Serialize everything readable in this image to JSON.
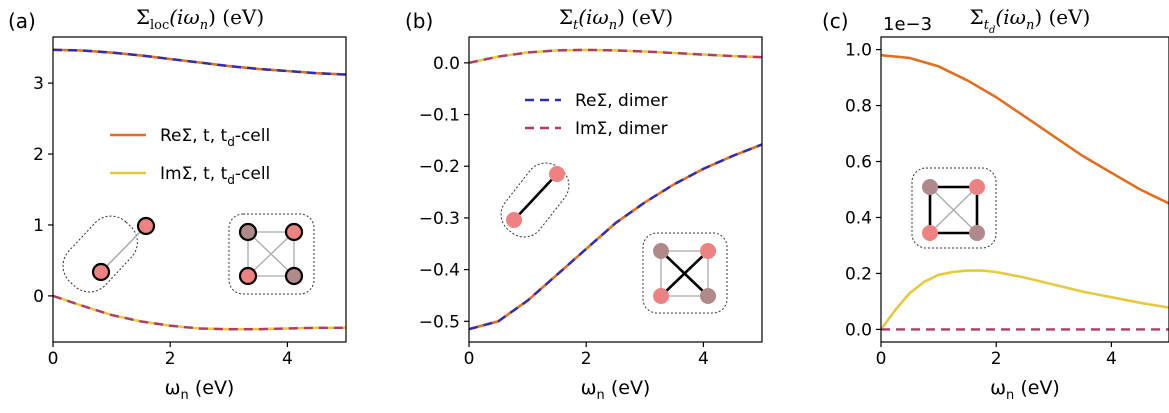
{
  "chart_data": [
    {
      "type": "line",
      "panel_label": "(a)",
      "title_main": "Σ",
      "title_sub": "loc",
      "title_rest": "(iω",
      "title_sub2": "n",
      "title_end": ") (eV)",
      "xlabel_main": "ω",
      "xlabel_sub": "n",
      "xlabel_rest": " (eV)",
      "xlim": [
        0,
        5
      ],
      "ylim": [
        -0.65,
        3.65
      ],
      "xticks": [
        0,
        2,
        4
      ],
      "yticks": [
        0,
        1,
        2,
        3
      ],
      "legend": {
        "placement": "center-right",
        "entries": [
          {
            "main": "ReΣ, t, t",
            "sub": "d",
            "rest": "-cell",
            "color": "#e07020",
            "dash": false
          },
          {
            "main": "ImΣ, t, t",
            "sub": "d",
            "rest": "-cell",
            "color": "#e6c940",
            "dash": false
          }
        ]
      },
      "series": [
        {
          "color": "#e07020",
          "x": [
            0,
            0.5,
            1,
            1.5,
            2,
            2.5,
            3,
            3.5,
            4,
            4.5,
            5
          ],
          "values": [
            3.47,
            3.46,
            3.43,
            3.39,
            3.34,
            3.29,
            3.24,
            3.2,
            3.17,
            3.14,
            3.12
          ]
        },
        {
          "color": "#2d2db8",
          "dash": true,
          "x": [
            0,
            0.5,
            1,
            1.5,
            2,
            2.5,
            3,
            3.5,
            4,
            4.5,
            5
          ],
          "values": [
            3.47,
            3.46,
            3.43,
            3.39,
            3.34,
            3.29,
            3.24,
            3.2,
            3.17,
            3.14,
            3.12
          ]
        },
        {
          "color": "#e6c940",
          "x": [
            0,
            0.5,
            1,
            1.5,
            2,
            2.5,
            3,
            3.5,
            4,
            4.5,
            5
          ],
          "values": [
            0,
            -0.14,
            -0.27,
            -0.36,
            -0.42,
            -0.46,
            -0.47,
            -0.47,
            -0.46,
            -0.45,
            -0.45
          ]
        },
        {
          "color": "#b03a6e",
          "dash": true,
          "x": [
            0,
            0.5,
            1,
            1.5,
            2,
            2.5,
            3,
            3.5,
            4,
            4.5,
            5
          ],
          "values": [
            0,
            -0.14,
            -0.27,
            -0.36,
            -0.42,
            -0.46,
            -0.47,
            -0.47,
            -0.46,
            -0.45,
            -0.45
          ]
        }
      ]
    },
    {
      "type": "line",
      "panel_label": "(b)",
      "title_main": "Σ",
      "title_sub": "t",
      "title_rest": "(iω",
      "title_sub2": "n",
      "title_end": ") (eV)",
      "xlabel_main": "ω",
      "xlabel_sub": "n",
      "xlabel_rest": " (eV)",
      "xlim": [
        0,
        5
      ],
      "ylim": [
        -0.54,
        0.05
      ],
      "xticks": [
        0,
        2,
        4
      ],
      "yticks": [
        0.0,
        -0.1,
        -0.2,
        -0.3,
        -0.4,
        -0.5
      ],
      "ytick_labels": [
        "0.0",
        "−0.1",
        "−0.2",
        "−0.3",
        "−0.4",
        "−0.5"
      ],
      "legend": {
        "placement": "upper-right",
        "entries": [
          {
            "main": "ReΣ, dimer",
            "sub": "",
            "rest": "",
            "color": "#2d2db8",
            "dash": true
          },
          {
            "main": "ImΣ, dimer",
            "sub": "",
            "rest": "",
            "color": "#b03a6e",
            "dash": true
          }
        ]
      },
      "series": [
        {
          "color": "#e07020",
          "x": [
            0,
            0.5,
            1,
            1.5,
            2,
            2.5,
            3,
            3.5,
            4,
            4.5,
            5
          ],
          "values": [
            -0.515,
            -0.5,
            -0.46,
            -0.41,
            -0.36,
            -0.31,
            -0.27,
            -0.235,
            -0.205,
            -0.18,
            -0.158
          ]
        },
        {
          "color": "#2d2db8",
          "dash": true,
          "x": [
            0,
            0.5,
            1,
            1.5,
            2,
            2.5,
            3,
            3.5,
            4,
            4.5,
            5
          ],
          "values": [
            -0.515,
            -0.5,
            -0.46,
            -0.41,
            -0.36,
            -0.31,
            -0.27,
            -0.235,
            -0.205,
            -0.18,
            -0.158
          ]
        },
        {
          "color": "#e6c940",
          "x": [
            0,
            0.5,
            1,
            1.5,
            2,
            2.5,
            3,
            3.5,
            4,
            4.5,
            5
          ],
          "values": [
            0,
            0.012,
            0.02,
            0.024,
            0.025,
            0.024,
            0.022,
            0.019,
            0.016,
            0.013,
            0.011
          ]
        },
        {
          "color": "#b03a6e",
          "dash": true,
          "x": [
            0,
            0.5,
            1,
            1.5,
            2,
            2.5,
            3,
            3.5,
            4,
            4.5,
            5
          ],
          "values": [
            0,
            0.012,
            0.02,
            0.024,
            0.025,
            0.024,
            0.022,
            0.019,
            0.016,
            0.013,
            0.011
          ]
        }
      ]
    },
    {
      "type": "line",
      "panel_label": "(c)",
      "title_main": "Σ",
      "title_sub": "t",
      "title_subsub": "d",
      "title_rest": "(iω",
      "title_sub2": "n",
      "title_end": ") (eV)",
      "exponent": "1e−3",
      "xlabel_main": "ω",
      "xlabel_sub": "n",
      "xlabel_rest": " (eV)",
      "xlim": [
        0,
        5
      ],
      "ylim": [
        -0.045,
        1.045
      ],
      "xticks": [
        0,
        2,
        4
      ],
      "yticks": [
        0.0,
        0.2,
        0.4,
        0.6,
        0.8,
        1.0
      ],
      "ytick_labels": [
        "0.0",
        "0.2",
        "0.4",
        "0.6",
        "0.8",
        "1.0"
      ],
      "series": [
        {
          "color": "#e07020",
          "x": [
            0,
            0.5,
            1,
            1.5,
            2,
            2.5,
            3,
            3.5,
            4,
            4.5,
            5
          ],
          "values": [
            0.98,
            0.97,
            0.94,
            0.89,
            0.83,
            0.76,
            0.69,
            0.62,
            0.56,
            0.5,
            0.45
          ]
        },
        {
          "color": "#e6c940",
          "x": [
            0,
            0.25,
            0.5,
            0.75,
            1,
            1.25,
            1.5,
            1.75,
            2,
            2.5,
            3,
            3.5,
            4,
            4.5,
            5
          ],
          "values": [
            0,
            0.07,
            0.13,
            0.17,
            0.195,
            0.205,
            0.21,
            0.21,
            0.205,
            0.185,
            0.16,
            0.135,
            0.115,
            0.095,
            0.078
          ]
        },
        {
          "color": "#b03a6e",
          "dash": true,
          "x": [
            0,
            5
          ],
          "values": [
            0,
            0
          ]
        }
      ]
    }
  ]
}
